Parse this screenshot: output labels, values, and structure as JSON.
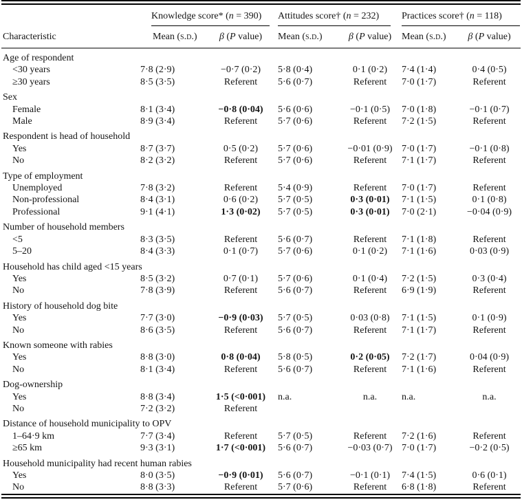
{
  "table": {
    "char_header": "Characteristic",
    "groups": [
      {
        "title": "Knowledge score*",
        "pre": " (",
        "n": "n",
        "post": " = 390)"
      },
      {
        "title": "Attitudes score†",
        "pre": " (",
        "n": "n",
        "post": " = 232)"
      },
      {
        "title": "Practices score†",
        "pre": " (",
        "n": "n",
        "post": " = 118)"
      }
    ],
    "sub_headers": {
      "mean_pre": "Mean (",
      "mean_sc": "s.d.",
      "mean_post": ")",
      "beta": "β",
      "beta_pre": " (",
      "p": "P",
      "beta_post": " value)"
    },
    "sections": [
      {
        "label": "Age of respondent",
        "rows": [
          {
            "label": "<30 years",
            "cells": [
              "7·8 (2·9)",
              "−0·7 (0·2)",
              "5·8 (0·4)",
              "0·1 (0·2)",
              "7·4 (1·4)",
              "0·4 (0·5)"
            ],
            "bold": []
          },
          {
            "label": "≥30 years",
            "cells": [
              "8·5 (3·5)",
              "Referent",
              "5·6 (0·7)",
              "Referent",
              "7·0 (1·7)",
              "Referent"
            ],
            "bold": []
          }
        ]
      },
      {
        "label": "Sex",
        "rows": [
          {
            "label": "Female",
            "cells": [
              "8·1 (3·4)",
              "−0·8 (0·04)",
              "5·6 (0·6)",
              "−0·1 (0·5)",
              "7·0 (1·8)",
              "−0·1 (0·7)"
            ],
            "bold": [
              1
            ]
          },
          {
            "label": "Male",
            "cells": [
              "8·9 (3·4)",
              "Referent",
              "5·7 (0·6)",
              "Referent",
              "7·2 (1·5)",
              "Referent"
            ],
            "bold": []
          }
        ]
      },
      {
        "label": "Respondent is head of household",
        "rows": [
          {
            "label": "Yes",
            "cells": [
              "8·7 (3·7)",
              "0·5 (0·2)",
              "5·7 (0·6)",
              "−0·01 (0·9)",
              "7·0 (1·7)",
              "−0·1 (0·8)"
            ],
            "bold": []
          },
          {
            "label": "No",
            "cells": [
              "8·2 (3·2)",
              "Referent",
              "5·7 (0·6)",
              "Referent",
              "7·1 (1·7)",
              "Referent"
            ],
            "bold": []
          }
        ]
      },
      {
        "label": "Type of employment",
        "rows": [
          {
            "label": "Unemployed",
            "cells": [
              "7·8 (3·2)",
              "Referent",
              "5·4 (0·9)",
              "Referent",
              "7·0 (1·7)",
              "Referent"
            ],
            "bold": []
          },
          {
            "label": "Non-professional",
            "cells": [
              "8·4 (3·1)",
              "0·6 (0·2)",
              "5·7 (0·5)",
              "0·3 (0·01)",
              "7·1 (1·5)",
              "0·1 (0·8)"
            ],
            "bold": [
              3
            ]
          },
          {
            "label": "Professional",
            "cells": [
              "9·1 (4·1)",
              "1·3 (0·02)",
              "5·7 (0·5)",
              "0·3 (0·01)",
              "7·0 (2·1)",
              "−0·04 (0·9)"
            ],
            "bold": [
              1,
              3
            ]
          }
        ]
      },
      {
        "label": "Number of household members",
        "rows": [
          {
            "label": "<5",
            "cells": [
              "8·3 (3·5)",
              "Referent",
              "5·6 (0·7)",
              "Referent",
              "7·1 (1·8)",
              "Referent"
            ],
            "bold": []
          },
          {
            "label": "5–20",
            "cells": [
              "8·4 (3·3)",
              "0·1 (0·7)",
              "5·7 (0·6)",
              "0·1 (0·2)",
              "7·1 (1·6)",
              "0·03 (0·9)"
            ],
            "bold": []
          }
        ]
      },
      {
        "label": "Household has child aged <15 years",
        "rows": [
          {
            "label": "Yes",
            "cells": [
              "8·5 (3·2)",
              "0·7 (0·1)",
              "5·7 (0·6)",
              "0·1 (0·4)",
              "7·2 (1·5)",
              "0·3 (0·4)"
            ],
            "bold": []
          },
          {
            "label": "No",
            "cells": [
              "7·8 (3·9)",
              "Referent",
              "5·6 (0·7)",
              "Referent",
              "6·9 (1·9)",
              "Referent"
            ],
            "bold": []
          }
        ]
      },
      {
        "label": "History of household dog bite",
        "rows": [
          {
            "label": "Yes",
            "cells": [
              "7·7 (3·0)",
              "−0·9 (0·03)",
              "5·7 (0·5)",
              "0·03 (0·8)",
              "7·1 (1·5)",
              "0·1 (0·9)"
            ],
            "bold": [
              1
            ]
          },
          {
            "label": "No",
            "cells": [
              "8·6 (3·5)",
              "Referent",
              "5·6 (0·7)",
              "Referent",
              "7·1 (1·7)",
              "Referent"
            ],
            "bold": []
          }
        ]
      },
      {
        "label": "Known someone with rabies",
        "rows": [
          {
            "label": "Yes",
            "cells": [
              "8·8 (3·0)",
              "0·8 (0·04)",
              "5·8 (0·5)",
              "0·2 (0·05)",
              "7·2 (1·7)",
              "0·04 (0·9)"
            ],
            "bold": [
              1,
              3
            ]
          },
          {
            "label": "No",
            "cells": [
              "8·1 (3·4)",
              "Referent",
              "5·6 (0·7)",
              "Referent",
              "7·1 (1·6)",
              "Referent"
            ],
            "bold": []
          }
        ]
      },
      {
        "label": "Dog-ownership",
        "rows": [
          {
            "label": "Yes",
            "cells": [
              "8·8 (3·4)",
              "1·5 (<0·001)",
              "n.a.",
              "n.a.",
              "n.a.",
              "n.a."
            ],
            "bold": [
              1
            ]
          },
          {
            "label": "No",
            "cells": [
              "7·2 (3·2)",
              "Referent",
              "",
              "",
              "",
              ""
            ],
            "bold": []
          }
        ]
      },
      {
        "label": "Distance of household municipality to OPV",
        "rows": [
          {
            "label": "1–64·9 km",
            "cells": [
              "7·7 (3·4)",
              "Referent",
              "5·7 (0·5)",
              "Referent",
              "7·2 (1·6)",
              "Referent"
            ],
            "bold": []
          },
          {
            "label": "≥65 km",
            "cells": [
              "9·3 (3·1)",
              "1·7 (<0·001)",
              "5·6 (0·7)",
              "−0·03 (0·7)",
              "7·0 (1·7)",
              "−0·2 (0·5)"
            ],
            "bold": [
              1
            ]
          }
        ]
      },
      {
        "label": "Household municipality had recent human rabies",
        "rows": [
          {
            "label": "Yes",
            "cells": [
              "8·0 (3·5)",
              "−0·9 (0·01)",
              "5·6 (0·7)",
              "−0·1 (0·1)",
              "7·4 (1·5)",
              "0·6 (0·1)"
            ],
            "bold": [
              1
            ]
          },
          {
            "label": "No",
            "cells": [
              "8·8 (3·3)",
              "Referent",
              "5·7 (0·6)",
              "Referent",
              "6·8 (1·8)",
              "Referent"
            ],
            "bold": []
          }
        ]
      }
    ]
  }
}
